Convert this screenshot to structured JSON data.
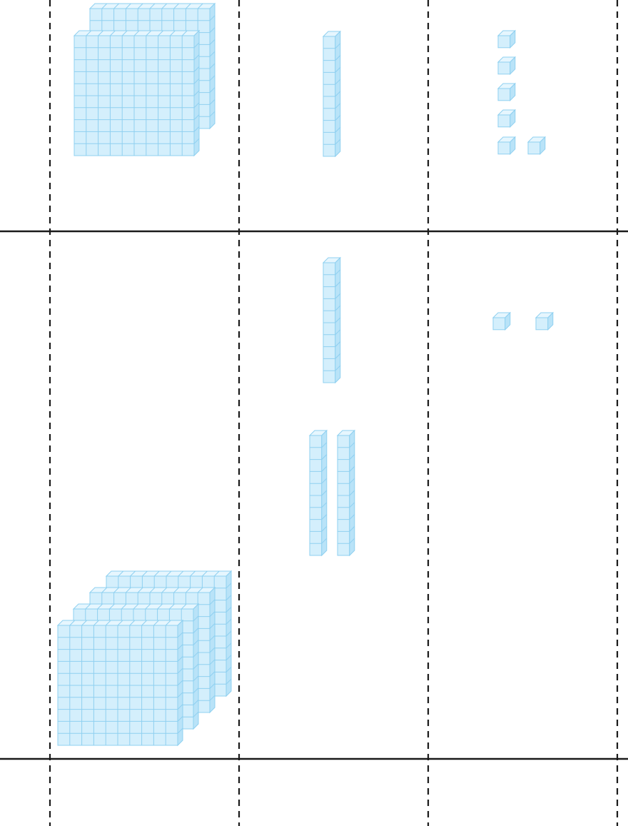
{
  "diagram": {
    "description_visible_text": "",
    "colors": {
      "block_fill": "#d4effc",
      "block_top": "#e6f6fe",
      "block_side": "#b9e3f8",
      "block_edge": "#8fd0f0",
      "line_color": "#1a1a1a"
    },
    "rows": [
      {
        "hundreds": 2,
        "tens": 1,
        "ones": 6
      },
      {
        "hundreds": 4,
        "tens": 3,
        "ones": 2
      }
    ]
  }
}
